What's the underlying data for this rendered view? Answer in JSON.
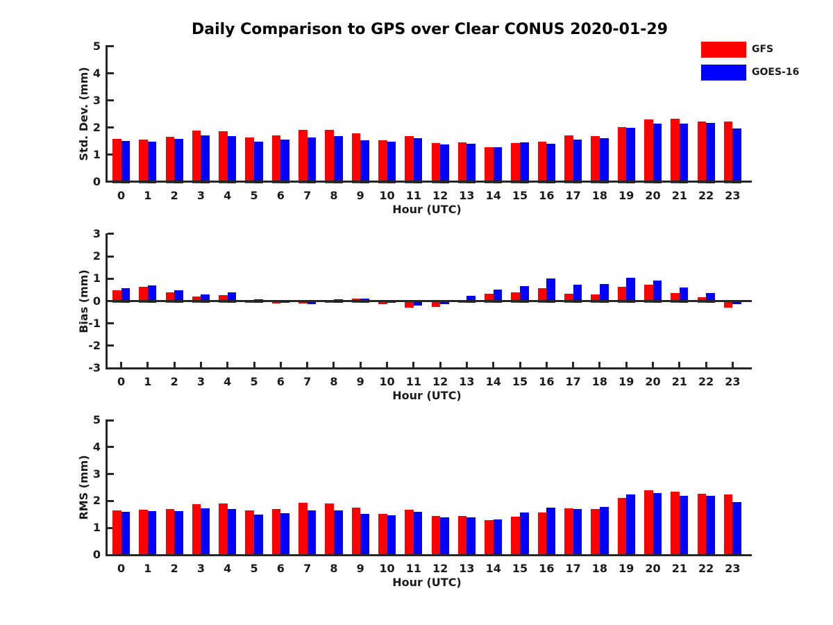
{
  "title": "Daily Comparison to GPS over Clear CONUS 2020-01-29",
  "legend": {
    "items": [
      {
        "label": "GFS",
        "color": "#ff0000"
      },
      {
        "label": "GOES-16",
        "color": "#0000ff"
      }
    ]
  },
  "colors": {
    "gfs": "#ff0000",
    "goes16": "#0000ff",
    "axis": "#262626",
    "text": "#1a1a1a"
  },
  "chart_data": [
    {
      "type": "bar",
      "ylabel": "Std. Dev. (mm)",
      "xlabel": "Hour (UTC)",
      "ylim": [
        0,
        5
      ],
      "yticks": [
        0,
        1,
        2,
        3,
        4,
        5
      ],
      "grid": false,
      "legend_position": "top-right-outside",
      "categories": [
        "0",
        "1",
        "2",
        "3",
        "4",
        "5",
        "6",
        "7",
        "8",
        "9",
        "10",
        "11",
        "12",
        "13",
        "14",
        "15",
        "16",
        "17",
        "18",
        "19",
        "20",
        "21",
        "22",
        "23"
      ],
      "series": [
        {
          "name": "GFS",
          "color": "#ff0000",
          "values": [
            1.57,
            1.55,
            1.66,
            1.88,
            1.87,
            1.62,
            1.7,
            1.92,
            1.92,
            1.78,
            1.52,
            1.67,
            1.42,
            1.44,
            1.27,
            1.42,
            1.47,
            1.7,
            1.67,
            2.02,
            2.29,
            2.31,
            2.23,
            2.21
          ]
        },
        {
          "name": "GOES-16",
          "color": "#0000ff",
          "values": [
            1.5,
            1.48,
            1.57,
            1.7,
            1.67,
            1.48,
            1.56,
            1.64,
            1.67,
            1.52,
            1.48,
            1.6,
            1.37,
            1.4,
            1.27,
            1.45,
            1.4,
            1.54,
            1.61,
            1.99,
            2.14,
            2.14,
            2.16,
            1.96
          ]
        }
      ]
    },
    {
      "type": "bar",
      "ylabel": "Bias (mm)",
      "xlabel": "Hour (UTC)",
      "ylim": [
        -3,
        3
      ],
      "yticks": [
        -3,
        -2,
        -1,
        0,
        1,
        2,
        3
      ],
      "grid": false,
      "categories": [
        "0",
        "1",
        "2",
        "3",
        "4",
        "5",
        "6",
        "7",
        "8",
        "9",
        "10",
        "11",
        "12",
        "13",
        "14",
        "15",
        "16",
        "17",
        "18",
        "19",
        "20",
        "21",
        "22",
        "23"
      ],
      "series": [
        {
          "name": "GFS",
          "color": "#ff0000",
          "values": [
            0.48,
            0.63,
            0.38,
            0.2,
            0.26,
            0.02,
            -0.07,
            -0.05,
            0.03,
            0.1,
            -0.08,
            -0.24,
            -0.23,
            0.06,
            0.32,
            0.4,
            0.56,
            0.32,
            0.28,
            0.65,
            0.72,
            0.35,
            0.18,
            -0.25
          ]
        },
        {
          "name": "GOES-16",
          "color": "#0000ff",
          "values": [
            0.58,
            0.7,
            0.47,
            0.29,
            0.4,
            0.08,
            -0.02,
            -0.08,
            0.07,
            0.1,
            -0.04,
            -0.15,
            -0.1,
            0.22,
            0.52,
            0.68,
            1.0,
            0.72,
            0.76,
            1.04,
            0.93,
            0.6,
            0.37,
            -0.1
          ]
        }
      ]
    },
    {
      "type": "bar",
      "ylabel": "RMS (mm)",
      "xlabel": "Hour (UTC)",
      "ylim": [
        0,
        5
      ],
      "yticks": [
        0,
        1,
        2,
        3,
        4,
        5
      ],
      "grid": false,
      "categories": [
        "0",
        "1",
        "2",
        "3",
        "4",
        "5",
        "6",
        "7",
        "8",
        "9",
        "10",
        "11",
        "12",
        "13",
        "14",
        "15",
        "16",
        "17",
        "18",
        "19",
        "20",
        "21",
        "22",
        "23"
      ],
      "series": [
        {
          "name": "GFS",
          "color": "#ff0000",
          "values": [
            1.65,
            1.67,
            1.7,
            1.89,
            1.91,
            1.64,
            1.7,
            1.93,
            1.91,
            1.76,
            1.52,
            1.67,
            1.45,
            1.44,
            1.28,
            1.43,
            1.58,
            1.73,
            1.71,
            2.12,
            2.4,
            2.34,
            2.26,
            2.24
          ]
        },
        {
          "name": "GOES-16",
          "color": "#0000ff",
          "values": [
            1.6,
            1.62,
            1.62,
            1.73,
            1.7,
            1.49,
            1.55,
            1.66,
            1.65,
            1.53,
            1.47,
            1.6,
            1.38,
            1.4,
            1.32,
            1.56,
            1.75,
            1.7,
            1.78,
            2.24,
            2.3,
            2.18,
            2.2,
            1.96
          ]
        }
      ]
    }
  ]
}
